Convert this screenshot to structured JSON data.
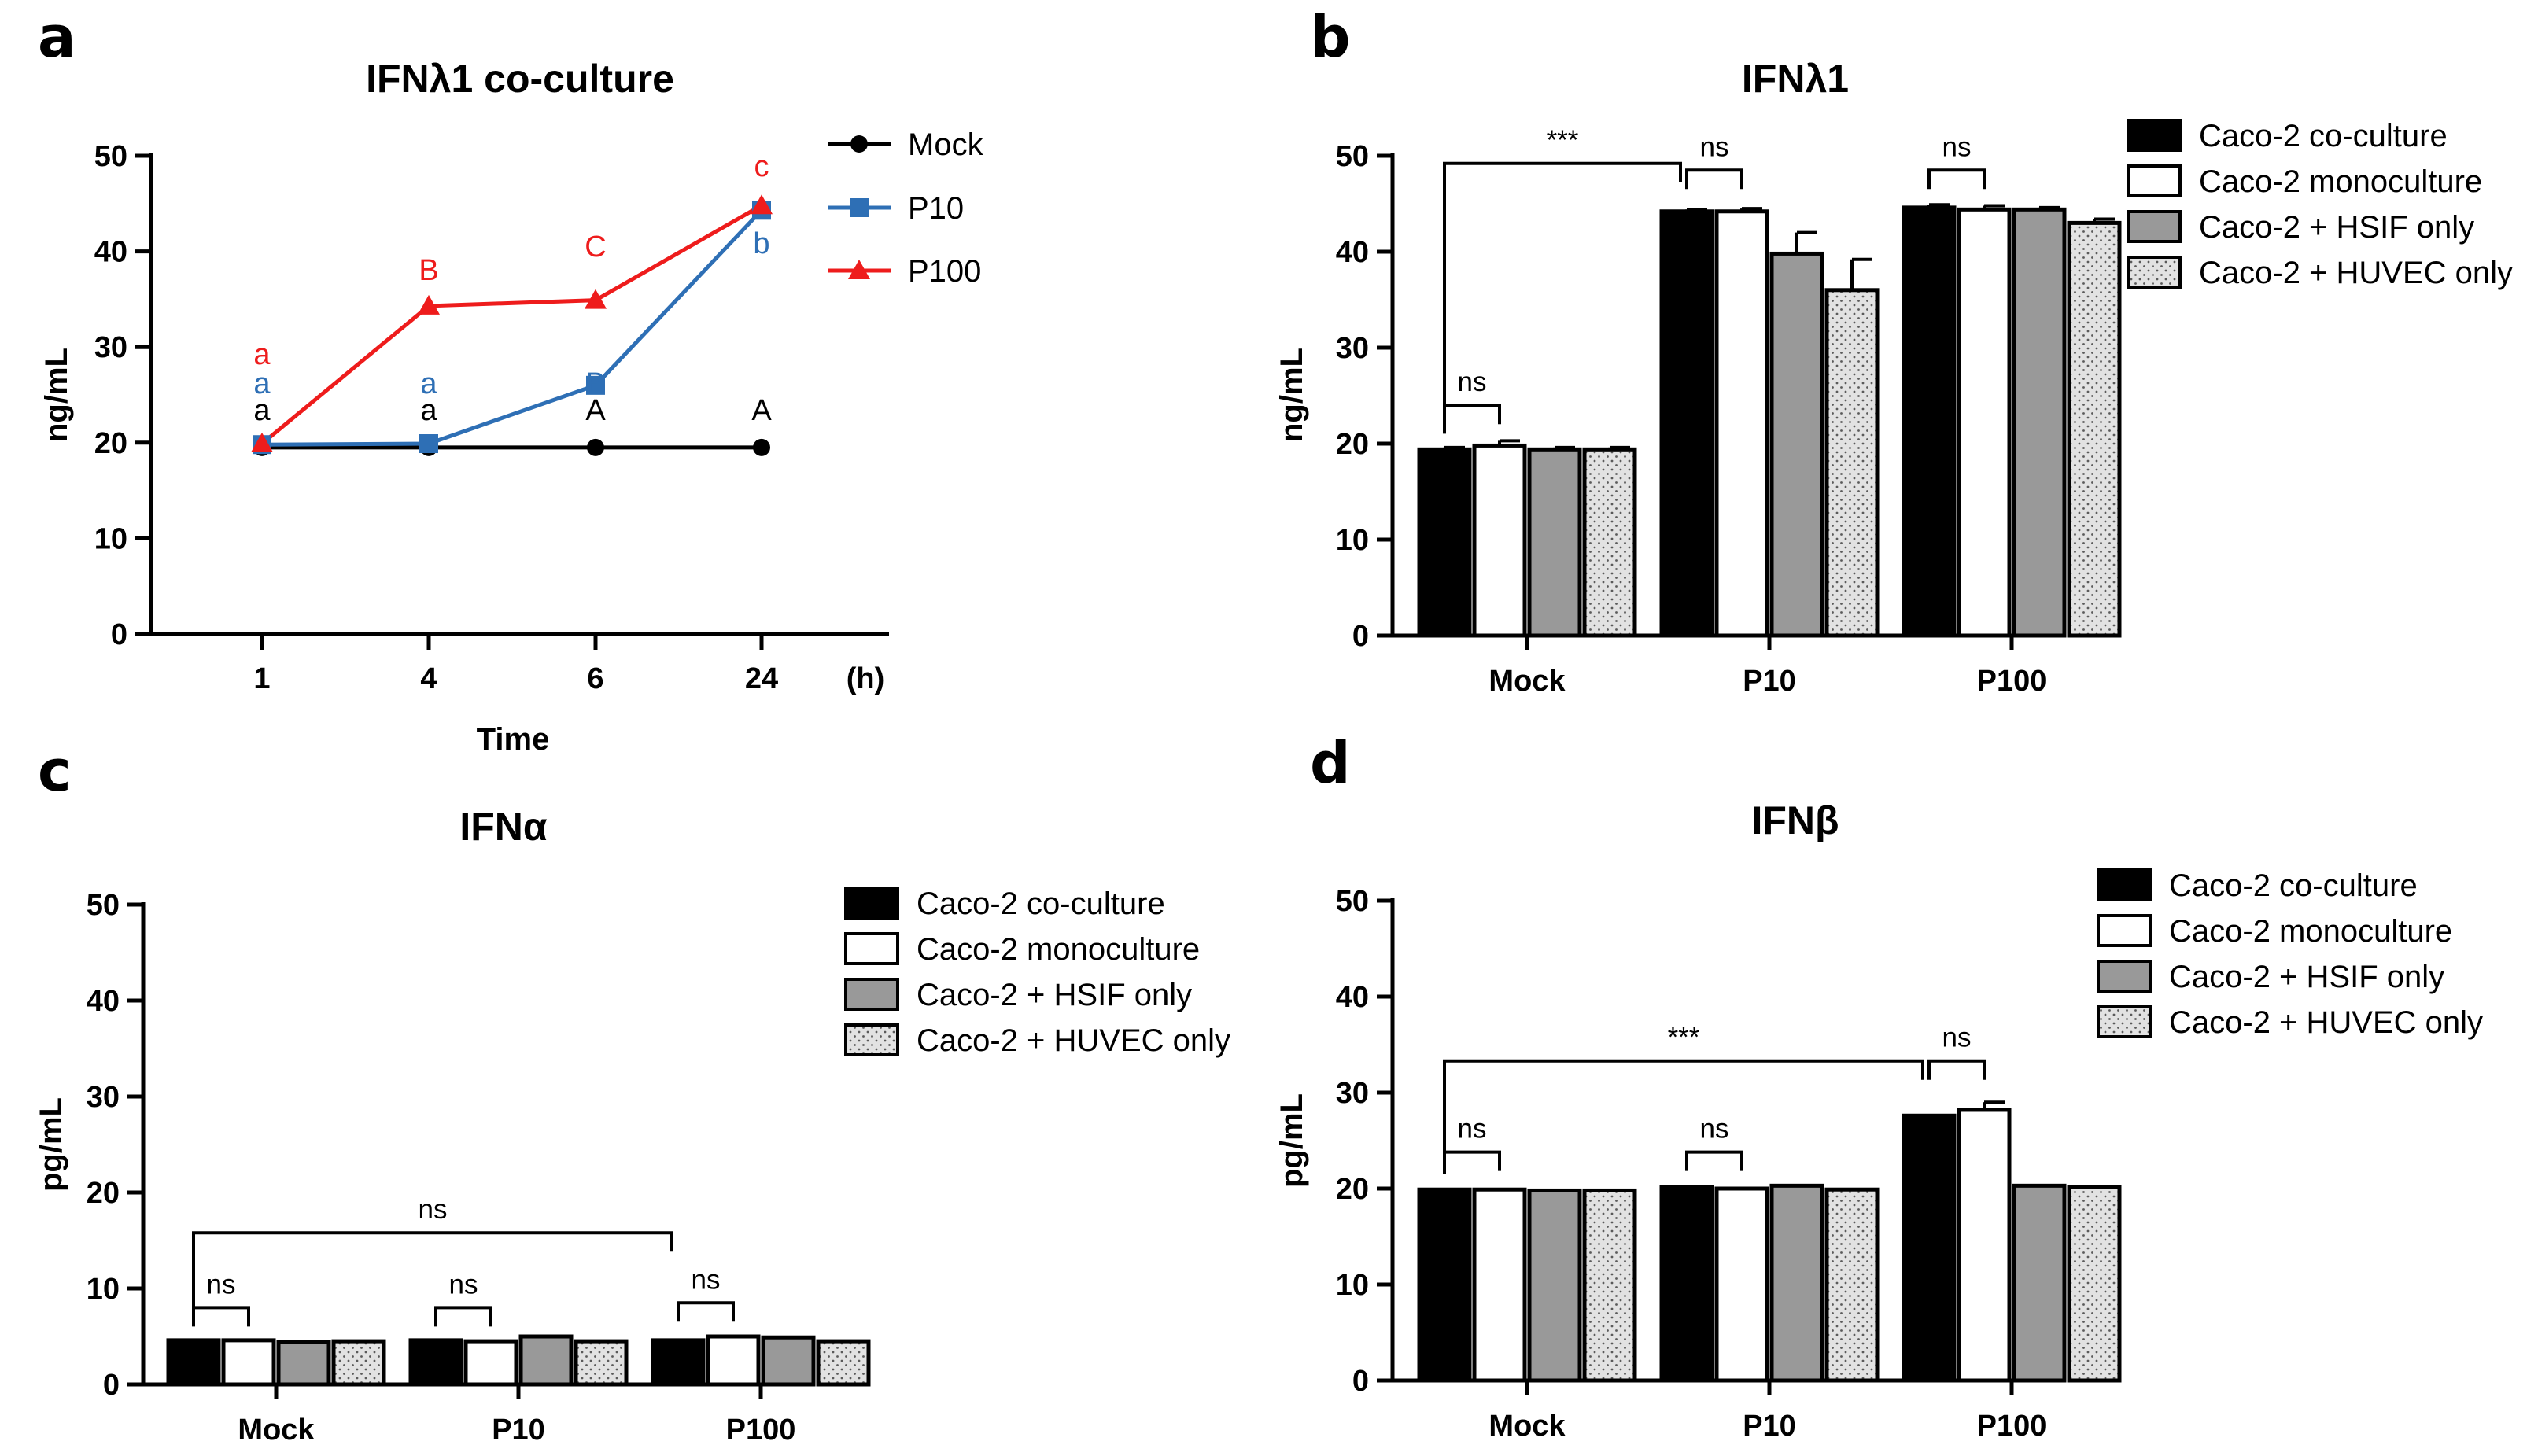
{
  "panels": {
    "a": {
      "letter": "a"
    },
    "b": {
      "letter": "b"
    },
    "c": {
      "letter": "c"
    },
    "d": {
      "letter": "d"
    }
  },
  "chart_data": [
    {
      "id": "a",
      "type": "line",
      "title": "IFNλ1 co-culture",
      "xlabel": "Time",
      "x_unit": "(h)",
      "ylabel": "ng/mL",
      "ylim": [
        0,
        50
      ],
      "yticks": [
        0,
        10,
        20,
        30,
        40,
        50
      ],
      "categories": [
        "1",
        "4",
        "6",
        "24"
      ],
      "series": [
        {
          "name": "Mock",
          "color": "#000000",
          "marker": "circle",
          "values": [
            19.5,
            19.5,
            19.5,
            19.5
          ],
          "letters": [
            "a",
            "a",
            "A",
            "A"
          ]
        },
        {
          "name": "P10",
          "color": "#2E6FB5",
          "marker": "square",
          "values": [
            19.8,
            19.9,
            26.0,
            44.3
          ],
          "letters": [
            "a",
            "a",
            "B",
            "b"
          ]
        },
        {
          "name": "P100",
          "color": "#EE1C1C",
          "marker": "triangle",
          "values": [
            19.9,
            34.3,
            34.9,
            44.8
          ],
          "letters": [
            "a",
            "B",
            "C",
            "c"
          ]
        }
      ]
    },
    {
      "id": "b",
      "type": "bar",
      "title": "IFNλ1",
      "ylabel": "ng/mL",
      "ylim": [
        0,
        50
      ],
      "yticks": [
        0,
        10,
        20,
        30,
        40,
        50
      ],
      "categories": [
        "Mock",
        "P10",
        "P100"
      ],
      "legend": [
        "Caco-2 co-culture",
        "Caco-2 monoculture",
        "Caco-2 + HSIF only",
        "Caco-2 + HUVEC only"
      ],
      "series": [
        {
          "name": "Caco-2 co-culture",
          "values": [
            19.4,
            44.2,
            44.6
          ],
          "errors": [
            0.2,
            0.2,
            0.3
          ]
        },
        {
          "name": "Caco-2 monoculture",
          "values": [
            19.8,
            44.2,
            44.4
          ],
          "errors": [
            0.5,
            0.3,
            0.4
          ]
        },
        {
          "name": "Caco-2 + HSIF only",
          "values": [
            19.4,
            39.8,
            44.4
          ],
          "errors": [
            0.2,
            2.2,
            0.2
          ]
        },
        {
          "name": "Caco-2 + HUVEC only",
          "values": [
            19.4,
            36.0,
            43.0
          ],
          "errors": [
            0.2,
            3.2,
            0.4
          ]
        }
      ],
      "annotations": [
        {
          "label": "***",
          "type": "long",
          "from_group": 0,
          "from_bar": 0,
          "to_group": 1,
          "to_bar": 0,
          "y": 49.2
        },
        {
          "label": "ns",
          "type": "short",
          "group": 0,
          "y": 24.0
        },
        {
          "label": "ns",
          "type": "short",
          "group": 1,
          "y": 48.5
        },
        {
          "label": "ns",
          "type": "short",
          "group": 2,
          "y": 48.5
        }
      ]
    },
    {
      "id": "c",
      "type": "bar",
      "title": "IFNα",
      "ylabel": "pg/mL",
      "ylim": [
        0,
        50
      ],
      "yticks": [
        0,
        10,
        20,
        30,
        40,
        50
      ],
      "categories": [
        "Mock",
        "P10",
        "P100"
      ],
      "legend": [
        "Caco-2 co-culture",
        "Caco-2 monoculture",
        "Caco-2 + HSIF only",
        "Caco-2 + HUVEC only"
      ],
      "series": [
        {
          "name": "Caco-2 co-culture",
          "values": [
            4.6,
            4.6,
            4.6
          ],
          "errors": [
            0,
            0,
            0
          ]
        },
        {
          "name": "Caco-2 monoculture",
          "values": [
            4.6,
            4.5,
            5.0
          ],
          "errors": [
            0,
            0,
            0
          ]
        },
        {
          "name": "Caco-2 + HSIF only",
          "values": [
            4.4,
            5.0,
            4.9
          ],
          "errors": [
            0,
            0,
            0
          ]
        },
        {
          "name": "Caco-2 + HUVEC only",
          "values": [
            4.5,
            4.5,
            4.5
          ],
          "errors": [
            0,
            0,
            0
          ]
        }
      ],
      "annotations": [
        {
          "label": "ns",
          "type": "long",
          "from_group": 0,
          "from_bar": 0,
          "to_group": 2,
          "to_bar": 0,
          "y": 15.8
        },
        {
          "label": "ns",
          "type": "short",
          "group": 0,
          "y": 8.0
        },
        {
          "label": "ns",
          "type": "short",
          "group": 1,
          "y": 8.0
        },
        {
          "label": "ns",
          "type": "short",
          "group": 2,
          "y": 8.5
        }
      ]
    },
    {
      "id": "d",
      "type": "bar",
      "title": "IFNβ",
      "ylabel": "pg/mL",
      "ylim": [
        0,
        50
      ],
      "yticks": [
        0,
        10,
        20,
        30,
        40,
        50
      ],
      "categories": [
        "Mock",
        "P10",
        "P100"
      ],
      "legend": [
        "Caco-2 co-culture",
        "Caco-2 monoculture",
        "Caco-2 + HSIF only",
        "Caco-2 + HUVEC only"
      ],
      "series": [
        {
          "name": "Caco-2 co-culture",
          "values": [
            19.9,
            20.2,
            27.6
          ],
          "errors": [
            0,
            0,
            0
          ]
        },
        {
          "name": "Caco-2 monoculture",
          "values": [
            19.9,
            20.0,
            28.2
          ],
          "errors": [
            0,
            0,
            0.8
          ]
        },
        {
          "name": "Caco-2 + HSIF only",
          "values": [
            19.8,
            20.3,
            20.3
          ],
          "errors": [
            0,
            0,
            0
          ]
        },
        {
          "name": "Caco-2 + HUVEC only",
          "values": [
            19.8,
            19.9,
            20.2
          ],
          "errors": [
            0,
            0,
            0
          ]
        }
      ],
      "annotations": [
        {
          "label": "***",
          "type": "long",
          "from_group": 0,
          "from_bar": 0,
          "to_group": 2,
          "to_bar": 0,
          "y": 33.3
        },
        {
          "label": "ns",
          "type": "short",
          "group": 0,
          "y": 23.8
        },
        {
          "label": "ns",
          "type": "short",
          "group": 1,
          "y": 23.8
        },
        {
          "label": "ns",
          "type": "short",
          "group": 2,
          "y": 33.3
        }
      ]
    }
  ]
}
